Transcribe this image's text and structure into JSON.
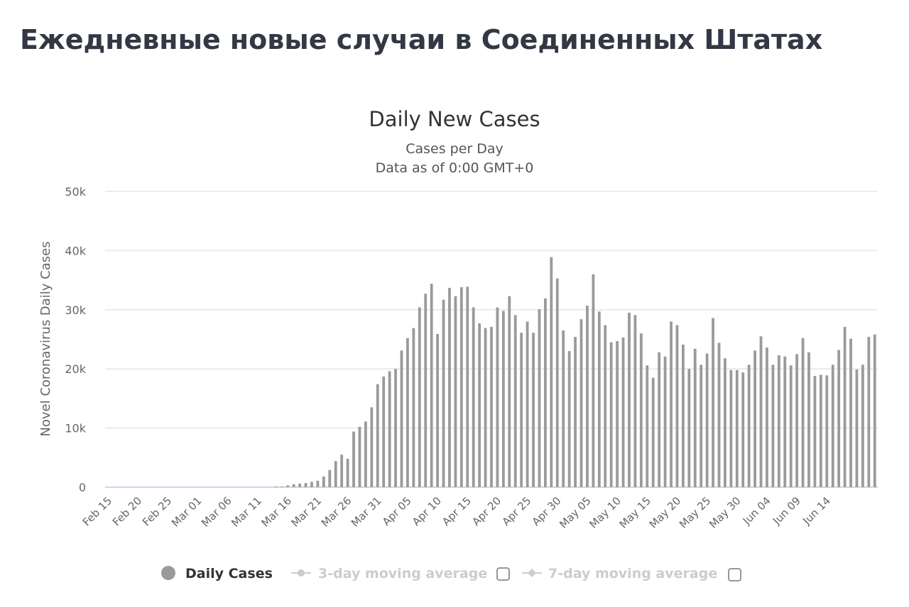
{
  "page": {
    "title": "Ежедневные новые случаи в Соединенных Штатах"
  },
  "colors": {
    "bar": "#9a9a9a",
    "grid": "#e6e6e6",
    "baseline": "#ccd6eb",
    "legend_inactive": "#cccccc",
    "legend_active": "#333333"
  },
  "chart_data": {
    "type": "bar",
    "title": "Daily New Cases",
    "subtitle": "Cases per Day",
    "subtitle2": "Data as of 0:00 GMT+0",
    "ylabel": "Novel Coronavirus Daily Cases",
    "xlabel": "",
    "ylim": [
      0,
      50000
    ],
    "y_ticks": [
      "0",
      "10k",
      "20k",
      "30k",
      "40k",
      "50k"
    ],
    "y_tick_values": [
      0,
      10000,
      20000,
      30000,
      40000,
      50000
    ],
    "grid": true,
    "x_tick_labels": [
      "Feb 15",
      "Feb 20",
      "Feb 25",
      "Mar 01",
      "Mar 06",
      "Mar 11",
      "Mar 16",
      "Mar 21",
      "Mar 26",
      "Mar 31",
      "Apr 05",
      "Apr 10",
      "Apr 15",
      "Apr 20",
      "Apr 25",
      "Apr 30",
      "May 05",
      "May 10",
      "May 15",
      "May 20",
      "May 25",
      "May 30",
      "Jun 04",
      "Jun 09",
      "Jun 14"
    ],
    "x_tick_every": 5,
    "series": [
      {
        "name": "Daily Cases",
        "values": [
          0,
          0,
          0,
          0,
          0,
          0,
          0,
          0,
          0,
          0,
          0,
          0,
          0,
          0,
          0,
          0,
          0,
          0,
          0,
          0,
          0,
          0,
          0,
          0,
          0,
          0,
          0,
          0,
          100,
          100,
          300,
          500,
          600,
          700,
          900,
          1100,
          1800,
          2900,
          4400,
          5500,
          4800,
          9400,
          10200,
          11100,
          13500,
          17400,
          18700,
          19600,
          20000,
          23100,
          25200,
          26900,
          30400,
          32700,
          34400,
          25900,
          31700,
          33700,
          32300,
          33800,
          33900,
          30400,
          27700,
          26900,
          27100,
          30400,
          29800,
          32300,
          29100,
          26100,
          28000,
          26100,
          30100,
          31900,
          38900,
          35300,
          26500,
          23000,
          25400,
          28400,
          30700,
          36000,
          29700,
          27400,
          24500,
          24700,
          25300,
          29500,
          29100,
          26000,
          20600,
          18500,
          22800,
          22100,
          28000,
          27400,
          24100,
          20000,
          23400,
          20700,
          22600,
          28600,
          24400,
          21800,
          19800,
          19800,
          19400,
          20700,
          23100,
          25500,
          23600,
          20700,
          22300,
          22100,
          20600,
          22500,
          25200,
          22800,
          18800,
          19000,
          18900,
          20700,
          23200,
          27100,
          25100,
          19900,
          20700,
          25400,
          25800
        ]
      }
    ],
    "legend": {
      "placement": "bottom-center",
      "items": [
        {
          "label": "Daily Cases",
          "active": true
        },
        {
          "label": "3-day moving average",
          "active": false
        },
        {
          "label": "7-day moving average",
          "active": false
        }
      ]
    }
  }
}
